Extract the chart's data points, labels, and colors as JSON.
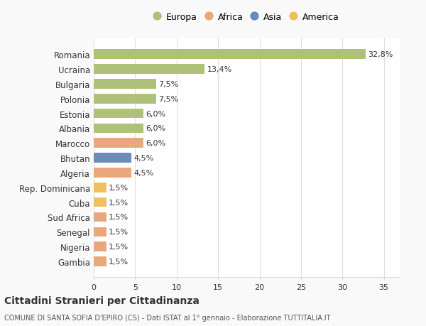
{
  "countries": [
    "Romania",
    "Ucraina",
    "Bulgaria",
    "Polonia",
    "Estonia",
    "Albania",
    "Marocco",
    "Bhutan",
    "Algeria",
    "Rep. Dominicana",
    "Cuba",
    "Sud Africa",
    "Senegal",
    "Nigeria",
    "Gambia"
  ],
  "values": [
    32.8,
    13.4,
    7.5,
    7.5,
    6.0,
    6.0,
    6.0,
    4.5,
    4.5,
    1.5,
    1.5,
    1.5,
    1.5,
    1.5,
    1.5
  ],
  "labels": [
    "32,8%",
    "13,4%",
    "7,5%",
    "7,5%",
    "6,0%",
    "6,0%",
    "6,0%",
    "4,5%",
    "4,5%",
    "1,5%",
    "1,5%",
    "1,5%",
    "1,5%",
    "1,5%",
    "1,5%"
  ],
  "colors": [
    "#adc178",
    "#adc178",
    "#adc178",
    "#adc178",
    "#adc178",
    "#adc178",
    "#e8a87c",
    "#6b8cba",
    "#e8a87c",
    "#f0c060",
    "#f0c060",
    "#e8a87c",
    "#e8a87c",
    "#e8a87c",
    "#e8a87c"
  ],
  "legend_labels": [
    "Europa",
    "Africa",
    "Asia",
    "America"
  ],
  "legend_colors": [
    "#adc178",
    "#e8a87c",
    "#6b8cba",
    "#f0c060"
  ],
  "title": "Cittadini Stranieri per Cittadinanza",
  "subtitle": "COMUNE DI SANTA SOFIA D'EPIRO (CS) - Dati ISTAT al 1° gennaio - Elaborazione TUTTITALIA.IT",
  "xlim": [
    0,
    37
  ],
  "xticks": [
    0,
    5,
    10,
    15,
    20,
    25,
    30,
    35
  ],
  "background_color": "#f9f9f9",
  "bar_background": "#ffffff",
  "grid_color": "#dddddd",
  "text_color": "#333333"
}
